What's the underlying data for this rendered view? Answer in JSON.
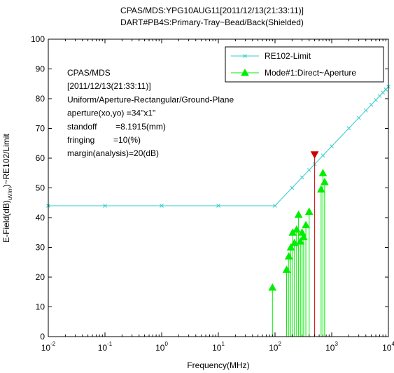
{
  "chart_data": {
    "type": "line",
    "title_lines": [
      "CPAS/MDS:YPG10AUG11[2011/12/13(21:33:11)]",
      "DART#PB4S:Primary-Tray~Bead/Back(Shielded)"
    ],
    "xlabel": "Frequency(MHz)",
    "ylabel_parts": [
      "E-Field(dB)",
      "uV/m",
      ")~RE102/Limit"
    ],
    "x_scale": "log",
    "xlim": [
      0.01,
      10000
    ],
    "ylim": [
      0,
      100
    ],
    "x_ticks": [
      {
        "value": 0.01,
        "base": "10",
        "exp": "-2"
      },
      {
        "value": 0.1,
        "base": "10",
        "exp": "-1"
      },
      {
        "value": 1,
        "base": "10",
        "exp": "0"
      },
      {
        "value": 10,
        "base": "10",
        "exp": "1"
      },
      {
        "value": 100,
        "base": "10",
        "exp": "2"
      },
      {
        "value": 1000,
        "base": "10",
        "exp": "3"
      },
      {
        "value": 10000,
        "base": "10",
        "exp": "4"
      }
    ],
    "y_ticks": [
      0,
      10,
      20,
      30,
      40,
      50,
      60,
      70,
      80,
      90,
      100
    ],
    "legend_position": "top-right",
    "annotation_lines": [
      "CPAS/MDS",
      "[2011/12/13(21:33:11)]",
      "Uniform/Aperture-Rectangular/Ground-Plane",
      "aperture(xo,yo) =34\"x1\"",
      "standoff        =8.1915(mm)",
      "fringing        =10(%)",
      "margin(analysis)=20(dB)"
    ],
    "series": [
      {
        "name": "RE102-Limit",
        "style": "line",
        "color": "#33cccc",
        "marker": "x",
        "x": [
          0.01,
          0.1,
          1,
          10,
          100,
          10000
        ],
        "y": [
          44,
          44,
          44,
          44,
          44,
          84
        ],
        "marker_x": [
          0.01,
          0.1,
          1,
          10,
          100,
          200,
          300,
          400,
          500,
          700,
          1000,
          2000,
          3000,
          4000,
          5000,
          6000,
          7000,
          8000,
          9000,
          10000
        ]
      },
      {
        "name": "Mode#1:Direct~Aperture",
        "style": "stem",
        "color": "#00ee00",
        "marker": "triangle",
        "x": [
          90,
          160,
          175,
          190,
          205,
          220,
          240,
          260,
          280,
          300,
          320,
          350,
          400,
          650,
          700,
          750
        ],
        "y": [
          16.5,
          22.5,
          27,
          30,
          35,
          31.5,
          36,
          41,
          32,
          35,
          33.5,
          37.5,
          42,
          49.5,
          55,
          52
        ]
      },
      {
        "style": "stem",
        "color": "#cc0000",
        "marker": "triangle-down",
        "x": [
          500
        ],
        "y": [
          61
        ]
      }
    ]
  }
}
